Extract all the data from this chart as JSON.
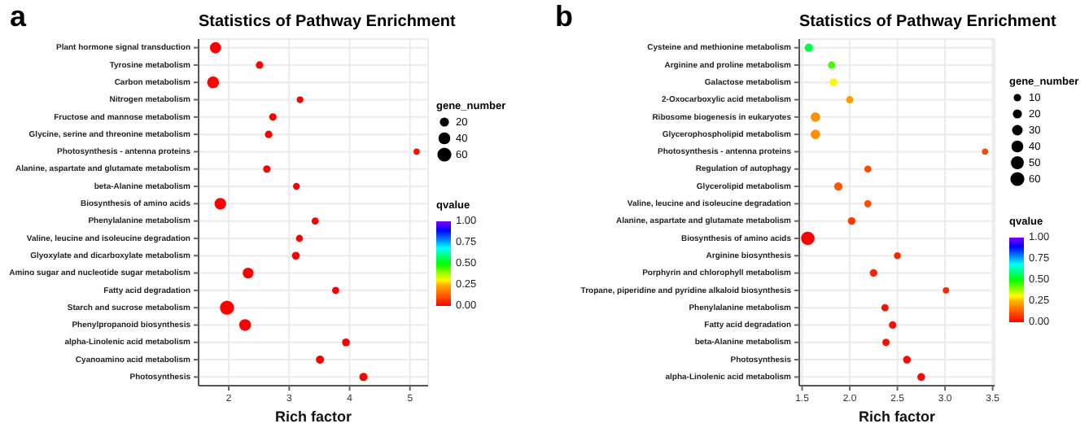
{
  "chart_data": [
    {
      "type": "bubble",
      "title": "Statistics of Pathway Enrichment",
      "xlabel": "Rich factor",
      "legend_title": "gene_number",
      "clabel": "qvalue",
      "annotations": [
        "a"
      ],
      "orientation": "horizontal",
      "grid": true,
      "categories": [
        "Plant hormone signal transduction",
        "Tyrosine metabolism",
        "Carbon metabolism",
        "Nitrogen metabolism",
        "Fructose and mannose metabolism",
        "Glycine, serine and threonine metabolism",
        "Photosynthesis - antenna proteins",
        "Alanine, aspartate and glutamate metabolism",
        "beta-Alanine metabolism",
        "Biosynthesis of amino acids",
        "Phenylalanine metabolism",
        "Valine, leucine and isoleucine degradation",
        "Glyoxylate and dicarboxylate metabolism",
        "Amino sugar and nucleotide sugar metabolism",
        "Fatty acid degradation",
        "Starch and sucrose metabolism",
        "Phenylpropanoid biosynthesis",
        "alpha-Linolenic acid metabolism",
        "Cyanoamino acid metabolism",
        "Photosynthesis"
      ],
      "values": [
        1.78,
        2.51,
        1.74,
        3.18,
        2.73,
        2.66,
        5.11,
        2.63,
        3.12,
        1.86,
        3.43,
        3.17,
        3.11,
        2.32,
        3.77,
        1.97,
        2.27,
        3.94,
        3.51,
        4.23
      ],
      "sizes": [
        35,
        10,
        40,
        6,
        10,
        10,
        4,
        10,
        7,
        38,
        8,
        8,
        12,
        32,
        9,
        60,
        40,
        12,
        14,
        14
      ],
      "cvalues": [
        0,
        0,
        0,
        0,
        0,
        0,
        0.02,
        0,
        0,
        0,
        0,
        0,
        0,
        0,
        0,
        0,
        0,
        0,
        0,
        0
      ],
      "size_legend": [
        20,
        40,
        60
      ],
      "xlim": [
        1.5,
        5.3
      ],
      "xticks": [
        2,
        3,
        4,
        5
      ],
      "clim": [
        0,
        1
      ],
      "cticks": [
        {
          "value": 0,
          "label": "0.00"
        },
        {
          "value": 0.25,
          "label": "0.25"
        },
        {
          "value": 0.5,
          "label": "0.50"
        },
        {
          "value": 0.75,
          "label": "0.75"
        },
        {
          "value": 1,
          "label": "1.00"
        }
      ]
    },
    {
      "type": "bubble",
      "title": "Statistics of Pathway Enrichment",
      "xlabel": "Rich factor",
      "legend_title": "gene_number",
      "clabel": "qvalue",
      "annotations": [
        "b"
      ],
      "orientation": "horizontal",
      "grid": true,
      "categories": [
        "Cysteine and methionine metabolism",
        "Arginine and proline metabolism",
        "Galactose metabolism",
        "2-Oxocarboxylic acid metabolism",
        "Ribosome biogenesis in eukaryotes",
        "Glycerophospholipid metabolism",
        "Photosynthesis - antenna proteins",
        "Regulation of autophagy",
        "Glycerolipid metabolism",
        "Valine, leucine and isoleucine degradation",
        "Alanine, aspartate and glutamate metabolism",
        "Biosynthesis of amino acids",
        "Arginine biosynthesis",
        "Porphyrin and chlorophyll metabolism",
        "Tropane, piperidine and pyridine alkaloid biosynthesis",
        "Phenylalanine metabolism",
        "Fatty acid degradation",
        "beta-Alanine metabolism",
        "Photosynthesis",
        "alpha-Linolenic acid metabolism"
      ],
      "values": [
        1.57,
        1.81,
        1.83,
        2.0,
        1.64,
        1.64,
        3.42,
        2.19,
        1.88,
        2.19,
        2.02,
        1.56,
        2.5,
        2.25,
        3.01,
        2.37,
        2.45,
        2.38,
        2.6,
        2.75
      ],
      "sizes": [
        15,
        10,
        12,
        9,
        22,
        22,
        4,
        8,
        15,
        8,
        11,
        55,
        7,
        11,
        5,
        9,
        10,
        9,
        12,
        12
      ],
      "cvalues": [
        0.55,
        0.45,
        0.3,
        0.22,
        0.2,
        0.2,
        0.1,
        0.1,
        0.12,
        0.1,
        0.08,
        0,
        0.05,
        0.05,
        0.05,
        0.02,
        0.02,
        0.02,
        0.01,
        0.01
      ],
      "size_legend": [
        10,
        20,
        30,
        40,
        50,
        60
      ],
      "xlim": [
        1.47,
        3.52
      ],
      "xticks": [
        {
          "value": 1.5,
          "label": "1.5"
        },
        {
          "value": 2,
          "label": "2.0"
        },
        {
          "value": 2.5,
          "label": "2.5"
        },
        {
          "value": 3,
          "label": "3.0"
        },
        {
          "value": 3.5,
          "label": "3.5"
        }
      ],
      "clim": [
        0,
        1
      ],
      "cticks": [
        {
          "value": 0,
          "label": "0.00"
        },
        {
          "value": 0.25,
          "label": "0.25"
        },
        {
          "value": 0.5,
          "label": "0.50"
        },
        {
          "value": 0.75,
          "label": "0.75"
        },
        {
          "value": 1,
          "label": "1.00"
        }
      ]
    }
  ]
}
